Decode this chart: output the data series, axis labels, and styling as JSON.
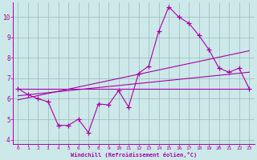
{
  "xlabel": "Windchill (Refroidissement éolien,°C)",
  "xlim": [
    -0.5,
    23.5
  ],
  "ylim": [
    3.8,
    10.7
  ],
  "yticks": [
    4,
    5,
    6,
    7,
    8,
    9,
    10
  ],
  "xticks": [
    0,
    1,
    2,
    3,
    4,
    5,
    6,
    7,
    8,
    9,
    10,
    11,
    12,
    13,
    14,
    15,
    16,
    17,
    18,
    19,
    20,
    21,
    22,
    23
  ],
  "bg_color": "#cce8e8",
  "line_color": "#aa00aa",
  "grid_color": "#99bbbb",
  "line1_x": [
    0,
    1,
    2,
    3,
    4,
    5,
    6,
    7,
    8,
    9,
    10,
    11,
    12,
    13,
    14,
    15,
    16,
    17,
    18,
    19,
    20,
    21,
    22,
    23
  ],
  "line1_y": [
    6.5,
    6.2,
    6.0,
    5.85,
    4.7,
    4.7,
    5.0,
    4.35,
    5.75,
    5.7,
    6.4,
    5.6,
    7.25,
    7.6,
    9.3,
    10.5,
    10.0,
    9.7,
    9.1,
    8.4,
    7.5,
    7.3,
    7.5,
    6.5
  ],
  "line2_x": [
    0,
    23
  ],
  "line2_y": [
    6.5,
    6.5
  ],
  "line3_x": [
    0,
    23
  ],
  "line3_y": [
    6.15,
    7.3
  ],
  "line4_x": [
    0,
    23
  ],
  "line4_y": [
    5.95,
    8.35
  ]
}
